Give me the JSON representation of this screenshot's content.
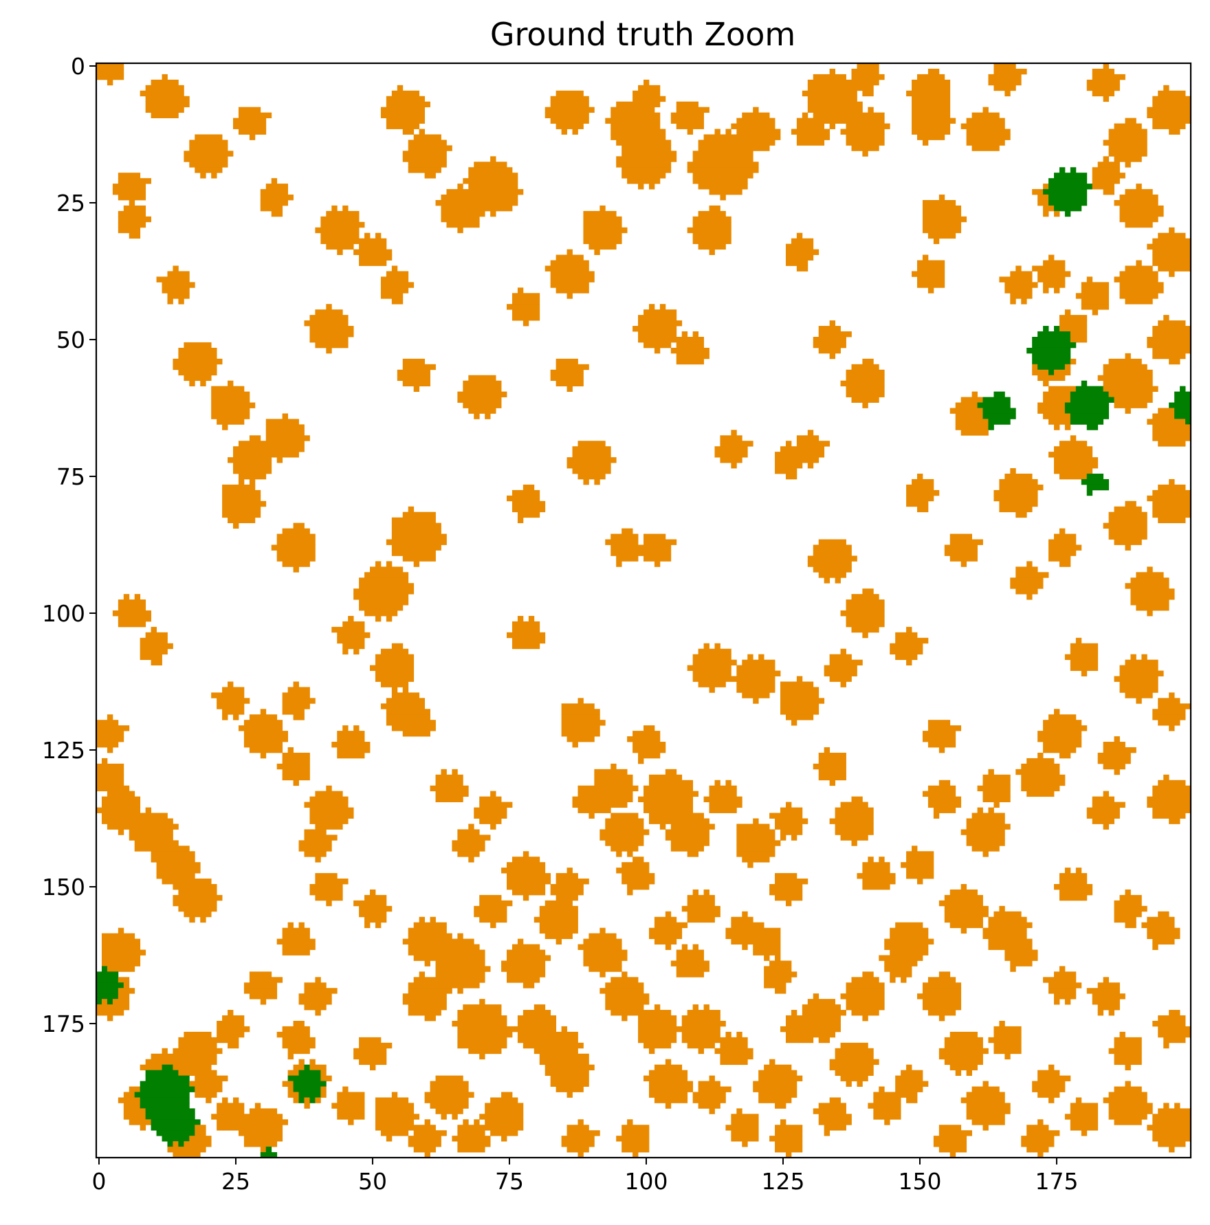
{
  "chart_data": {
    "type": "heatmap",
    "title": "Ground truth Zoom",
    "xlabel": "",
    "ylabel": "",
    "grid_size": 200,
    "xlim": [
      -0.5,
      199.5
    ],
    "ylim": [
      199.5,
      -0.5
    ],
    "x_ticks": [
      0,
      25,
      50,
      75,
      100,
      125,
      150,
      175
    ],
    "y_ticks": [
      0,
      25,
      50,
      75,
      100,
      125,
      150,
      175
    ],
    "x_tick_labels": [
      "0",
      "25",
      "50",
      "75",
      "100",
      "125",
      "150",
      "175"
    ],
    "y_tick_labels": [
      "0",
      "25",
      "50",
      "75",
      "100",
      "125",
      "150",
      "175"
    ],
    "grid": false,
    "legend": "none",
    "class_colors": {
      "background": "#ffffff",
      "orange_class": "#e98a00",
      "green_class": "#007f00"
    },
    "orange_blobs": [
      [
        2,
        0,
        3
      ],
      [
        12,
        6,
        4
      ],
      [
        20,
        16,
        4
      ],
      [
        32,
        24,
        3
      ],
      [
        44,
        30,
        4
      ],
      [
        50,
        34,
        3
      ],
      [
        56,
        8,
        4
      ],
      [
        60,
        16,
        4
      ],
      [
        72,
        22,
        5
      ],
      [
        86,
        8,
        4
      ],
      [
        98,
        11,
        5
      ],
      [
        100,
        17,
        5
      ],
      [
        114,
        18,
        6
      ],
      [
        120,
        12,
        4
      ],
      [
        134,
        6,
        5
      ],
      [
        140,
        12,
        4
      ],
      [
        152,
        5,
        4
      ],
      [
        166,
        2,
        3
      ],
      [
        6,
        22,
        3
      ],
      [
        14,
        40,
        3
      ],
      [
        18,
        54,
        4
      ],
      [
        24,
        62,
        4
      ],
      [
        28,
        72,
        4
      ],
      [
        26,
        80,
        4
      ],
      [
        36,
        88,
        4
      ],
      [
        58,
        86,
        5
      ],
      [
        52,
        96,
        5
      ],
      [
        6,
        28,
        3
      ],
      [
        34,
        68,
        4
      ],
      [
        42,
        48,
        4
      ],
      [
        58,
        56,
        3
      ],
      [
        78,
        44,
        3
      ],
      [
        100,
        6,
        3
      ],
      [
        108,
        9,
        3
      ],
      [
        130,
        12,
        3
      ],
      [
        184,
        3,
        3
      ],
      [
        140,
        2,
        3
      ],
      [
        152,
        10,
        4
      ],
      [
        162,
        12,
        4
      ],
      [
        174,
        24,
        3
      ],
      [
        188,
        14,
        4
      ],
      [
        196,
        8,
        4
      ],
      [
        28,
        10,
        3
      ],
      [
        54,
        40,
        3
      ],
      [
        66,
        26,
        4
      ],
      [
        86,
        38,
        4
      ],
      [
        92,
        30,
        4
      ],
      [
        102,
        48,
        4
      ],
      [
        112,
        30,
        4
      ],
      [
        128,
        34,
        3
      ],
      [
        134,
        50,
        3
      ],
      [
        154,
        28,
        4
      ],
      [
        168,
        40,
        3
      ],
      [
        174,
        54,
        4
      ],
      [
        140,
        58,
        4
      ],
      [
        130,
        70,
        3
      ],
      [
        150,
        78,
        3
      ],
      [
        168,
        78,
        4
      ],
      [
        160,
        64,
        4
      ],
      [
        176,
        62,
        4
      ],
      [
        188,
        58,
        5
      ],
      [
        196,
        66,
        4
      ],
      [
        178,
        72,
        4
      ],
      [
        188,
        84,
        4
      ],
      [
        196,
        80,
        4
      ],
      [
        192,
        96,
        4
      ],
      [
        176,
        88,
        3
      ],
      [
        190,
        40,
        4
      ],
      [
        196,
        50,
        4
      ],
      [
        182,
        42,
        3
      ],
      [
        190,
        26,
        4
      ],
      [
        196,
        34,
        4
      ],
      [
        184,
        20,
        3
      ],
      [
        174,
        38,
        3
      ],
      [
        178,
        48,
        3
      ],
      [
        90,
        72,
        4
      ],
      [
        78,
        80,
        3
      ],
      [
        70,
        60,
        4
      ],
      [
        86,
        56,
        3
      ],
      [
        96,
        88,
        3
      ],
      [
        102,
        88,
        3
      ],
      [
        108,
        52,
        3
      ],
      [
        116,
        70,
        3
      ],
      [
        126,
        72,
        3
      ],
      [
        152,
        38,
        3
      ],
      [
        6,
        100,
        3
      ],
      [
        10,
        106,
        3
      ],
      [
        24,
        116,
        3
      ],
      [
        30,
        122,
        4
      ],
      [
        36,
        128,
        3
      ],
      [
        42,
        136,
        4
      ],
      [
        54,
        110,
        4
      ],
      [
        56,
        118,
        4
      ],
      [
        46,
        104,
        3
      ],
      [
        78,
        104,
        3
      ],
      [
        88,
        120,
        4
      ],
      [
        100,
        124,
        3
      ],
      [
        94,
        132,
        4
      ],
      [
        104,
        134,
        5
      ],
      [
        108,
        140,
        4
      ],
      [
        112,
        110,
        4
      ],
      [
        120,
        112,
        4
      ],
      [
        128,
        116,
        4
      ],
      [
        136,
        110,
        3
      ],
      [
        140,
        100,
        4
      ],
      [
        148,
        106,
        3
      ],
      [
        134,
        90,
        4
      ],
      [
        158,
        88,
        3
      ],
      [
        170,
        94,
        3
      ],
      [
        180,
        108,
        3
      ],
      [
        190,
        112,
        4
      ],
      [
        196,
        118,
        3
      ],
      [
        176,
        122,
        4
      ],
      [
        186,
        126,
        3
      ],
      [
        196,
        134,
        4
      ],
      [
        184,
        136,
        3
      ],
      [
        172,
        130,
        4
      ],
      [
        164,
        132,
        3
      ],
      [
        154,
        122,
        3
      ],
      [
        162,
        140,
        4
      ],
      [
        150,
        146,
        3
      ],
      [
        138,
        138,
        4
      ],
      [
        134,
        128,
        3
      ],
      [
        158,
        154,
        4
      ],
      [
        166,
        158,
        4
      ],
      [
        148,
        160,
        4
      ],
      [
        178,
        150,
        3
      ],
      [
        188,
        154,
        3
      ],
      [
        194,
        158,
        3
      ],
      [
        184,
        170,
        3
      ],
      [
        196,
        176,
        3
      ],
      [
        188,
        180,
        3
      ],
      [
        2,
        122,
        3
      ],
      [
        2,
        130,
        3
      ],
      [
        4,
        136,
        4
      ],
      [
        10,
        140,
        4
      ],
      [
        14,
        146,
        4
      ],
      [
        18,
        152,
        4
      ],
      [
        4,
        162,
        4
      ],
      [
        2,
        170,
        4
      ],
      [
        8,
        190,
        4
      ],
      [
        16,
        196,
        4
      ],
      [
        24,
        192,
        3
      ],
      [
        24,
        176,
        3
      ],
      [
        30,
        168,
        3
      ],
      [
        36,
        178,
        3
      ],
      [
        38,
        186,
        4
      ],
      [
        46,
        190,
        3
      ],
      [
        54,
        192,
        4
      ],
      [
        30,
        194,
        4
      ],
      [
        50,
        180,
        3
      ],
      [
        40,
        170,
        3
      ],
      [
        60,
        170,
        4
      ],
      [
        60,
        160,
        4
      ],
      [
        66,
        164,
        5
      ],
      [
        70,
        176,
        5
      ],
      [
        64,
        188,
        4
      ],
      [
        74,
        192,
        4
      ],
      [
        60,
        196,
        3
      ],
      [
        68,
        196,
        3
      ],
      [
        80,
        176,
        4
      ],
      [
        86,
        184,
        4
      ],
      [
        78,
        164,
        4
      ],
      [
        84,
        156,
        4
      ],
      [
        92,
        162,
        4
      ],
      [
        78,
        148,
        4
      ],
      [
        72,
        154,
        3
      ],
      [
        86,
        150,
        3
      ],
      [
        96,
        170,
        4
      ],
      [
        102,
        176,
        4
      ],
      [
        110,
        176,
        4
      ],
      [
        104,
        186,
        4
      ],
      [
        112,
        188,
        3
      ],
      [
        118,
        194,
        3
      ],
      [
        98,
        196,
        3
      ],
      [
        88,
        196,
        3
      ],
      [
        84,
        180,
        4
      ],
      [
        124,
        186,
        4
      ],
      [
        126,
        196,
        3
      ],
      [
        116,
        180,
        3
      ],
      [
        128,
        176,
        3
      ],
      [
        124,
        166,
        3
      ],
      [
        132,
        174,
        4
      ],
      [
        138,
        182,
        4
      ],
      [
        144,
        190,
        3
      ],
      [
        134,
        192,
        3
      ],
      [
        148,
        186,
        3
      ],
      [
        140,
        170,
        4
      ],
      [
        146,
        164,
        3
      ],
      [
        154,
        170,
        4
      ],
      [
        158,
        180,
        4
      ],
      [
        166,
        178,
        3
      ],
      [
        162,
        190,
        4
      ],
      [
        174,
        186,
        3
      ],
      [
        180,
        192,
        3
      ],
      [
        188,
        190,
        4
      ],
      [
        196,
        194,
        4
      ],
      [
        172,
        196,
        3
      ],
      [
        156,
        196,
        3
      ],
      [
        176,
        168,
        3
      ],
      [
        168,
        162,
        3
      ],
      [
        142,
        148,
        3
      ],
      [
        126,
        150,
        3
      ],
      [
        118,
        158,
        3
      ],
      [
        110,
        154,
        3
      ],
      [
        98,
        148,
        3
      ],
      [
        104,
        158,
        3
      ],
      [
        108,
        164,
        3
      ],
      [
        122,
        160,
        3
      ],
      [
        154,
        134,
        3
      ],
      [
        50,
        154,
        3
      ],
      [
        42,
        150,
        3
      ],
      [
        40,
        142,
        3
      ],
      [
        36,
        160,
        3
      ],
      [
        68,
        142,
        3
      ],
      [
        72,
        136,
        3
      ],
      [
        64,
        132,
        3
      ],
      [
        58,
        120,
        3
      ],
      [
        46,
        124,
        3
      ],
      [
        36,
        116,
        3
      ],
      [
        18,
        180,
        4
      ],
      [
        12,
        184,
        4
      ],
      [
        20,
        186,
        3
      ],
      [
        120,
        142,
        4
      ],
      [
        126,
        138,
        3
      ],
      [
        114,
        134,
        3
      ],
      [
        96,
        140,
        4
      ],
      [
        90,
        134,
        3
      ]
    ],
    "green_blobs": [
      [
        177,
        23,
        4
      ],
      [
        174,
        52,
        4
      ],
      [
        181,
        62,
        4
      ],
      [
        164,
        63,
        3
      ],
      [
        182,
        76,
        2
      ],
      [
        199,
        62,
        3
      ],
      [
        1,
        168,
        3
      ],
      [
        12,
        188,
        5
      ],
      [
        14,
        193,
        4
      ],
      [
        38,
        186,
        3
      ],
      [
        31,
        199,
        1
      ]
    ]
  }
}
